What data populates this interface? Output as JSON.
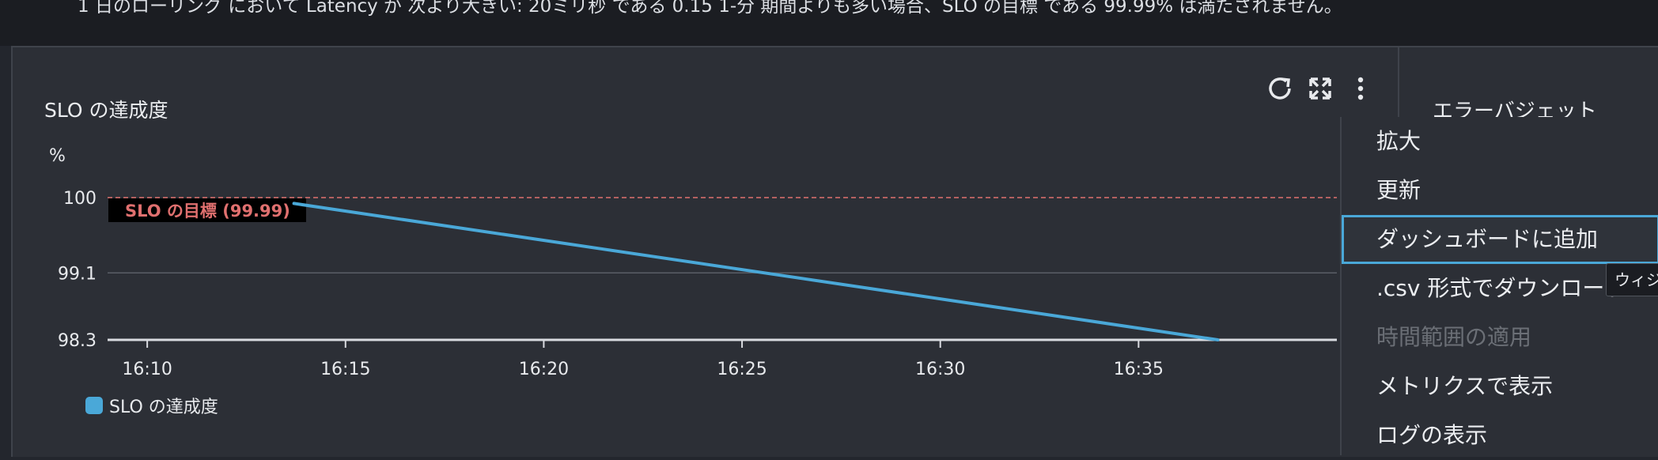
{
  "banner": {
    "text": "1 日のローリング において Latency が 次より大きい: 20ミリ秒 である 0.15 1-分 期間よりも多い場合、SLO の目標 である 99.99% は満たされません。"
  },
  "panel": {
    "title": "SLO の達成度",
    "side_title": "エラーバジェット"
  },
  "toolbar": {
    "refresh_icon": "refresh-icon",
    "expand_icon": "expand-icon",
    "more_icon": "more-vertical-icon"
  },
  "colors": {
    "series": "#4aa8d8",
    "target": "#e0706f",
    "grid": "#5a5e66",
    "background": "#2c2f36"
  },
  "chart_data": {
    "type": "line",
    "title": "SLO の達成度",
    "ylabel": "%",
    "xlabel": "",
    "y_ticks": [
      "100",
      "99.1",
      "98.3"
    ],
    "x_ticks": [
      "16:10",
      "16:15",
      "16:20",
      "16:25",
      "16:30",
      "16:35"
    ],
    "ylim": [
      98.3,
      100
    ],
    "x_minutes_range": [
      9.0,
      40.0
    ],
    "series": [
      {
        "name": "SLO の達成度",
        "x_minutes": [
          13.7,
          37.0
        ],
        "values": [
          99.93,
          98.3
        ]
      }
    ],
    "target": {
      "label": "SLO の目標 (99.99)",
      "value": 99.99
    },
    "legend": [
      "SLO の達成度"
    ]
  },
  "menu": {
    "items": [
      {
        "label": "拡大",
        "state": "normal"
      },
      {
        "label": "更新",
        "state": "normal"
      },
      {
        "label": "ダッシュボードに追加",
        "state": "focused"
      },
      {
        "label": ".csv 形式でダウンロード",
        "state": "normal"
      },
      {
        "label": "時間範囲の適用",
        "state": "disabled"
      },
      {
        "label": "メトリクスで表示",
        "state": "normal"
      },
      {
        "label": "ログの表示",
        "state": "normal"
      }
    ]
  },
  "tooltip": {
    "text": "ウィジ"
  }
}
